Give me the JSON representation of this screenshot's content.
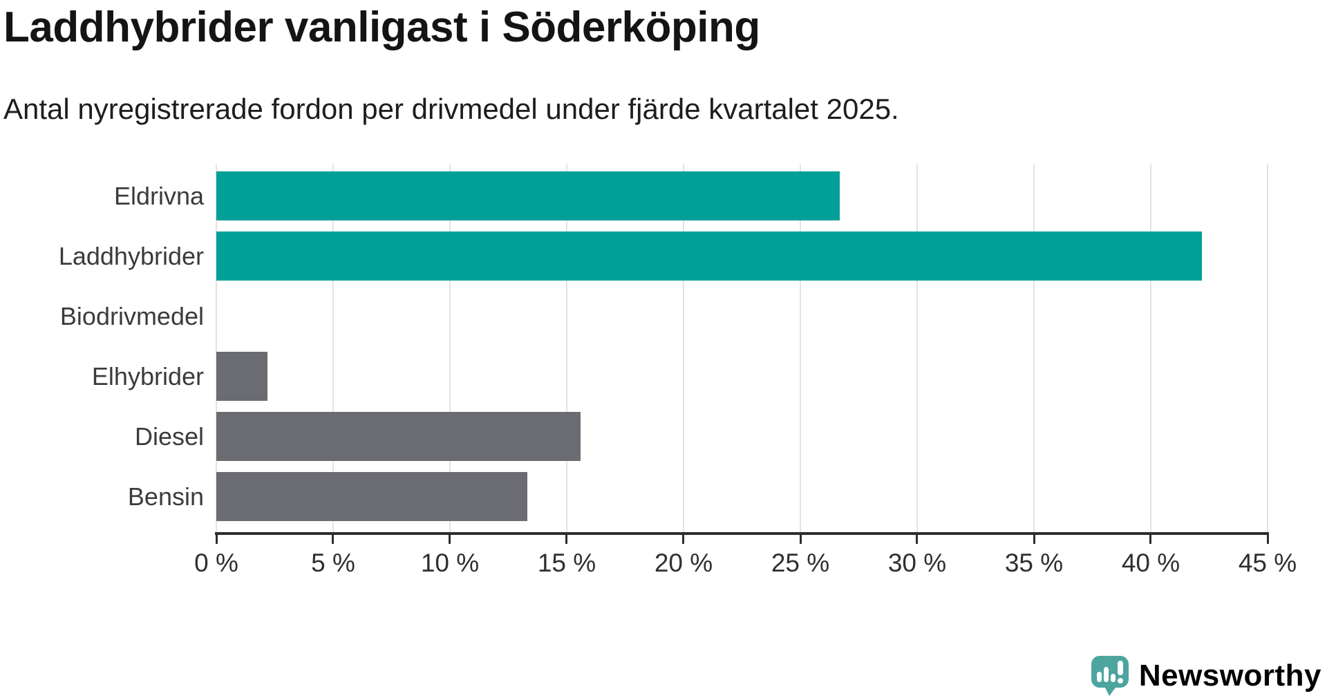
{
  "chart_data": {
    "type": "bar",
    "orientation": "horizontal",
    "title": "Laddhybrider vanligast i Söderköping",
    "subtitle": "Antal nyregistrerade fordon per drivmedel under fjärde kvartalet 2025.",
    "categories": [
      "Eldrivna",
      "Laddhybrider",
      "Biodrivmedel",
      "Elhybrider",
      "Diesel",
      "Bensin"
    ],
    "values": [
      26.7,
      42.2,
      0,
      2.2,
      15.6,
      13.3
    ],
    "unit": "%",
    "bar_colors": [
      "#00A099",
      "#00A099",
      "#00A099",
      "#6B6B72",
      "#6B6B72",
      "#6B6B72"
    ],
    "colors": {
      "electric_teal": "#00A099",
      "fossil_gray": "#6B6B72",
      "grid": "#E2E2E2",
      "axis": "#2D2D2D"
    },
    "xlabel": "",
    "ylabel": "",
    "xlim": [
      0,
      45
    ],
    "x_ticks": [
      0,
      5,
      10,
      15,
      20,
      25,
      30,
      35,
      40,
      45
    ],
    "x_tick_labels": [
      "0 %",
      "5 %",
      "10 %",
      "15 %",
      "20 %",
      "25 %",
      "30 %",
      "35 %",
      "40 %",
      "45 %"
    ],
    "grid": true,
    "legend": false
  },
  "branding": {
    "name": "Newsworthy",
    "icon": "newsworthy-speech-bubble-chart-icon",
    "icon_color": "#4CA59E",
    "glyph_color": "#FFFFFF",
    "text_color": "#3F9B95"
  }
}
